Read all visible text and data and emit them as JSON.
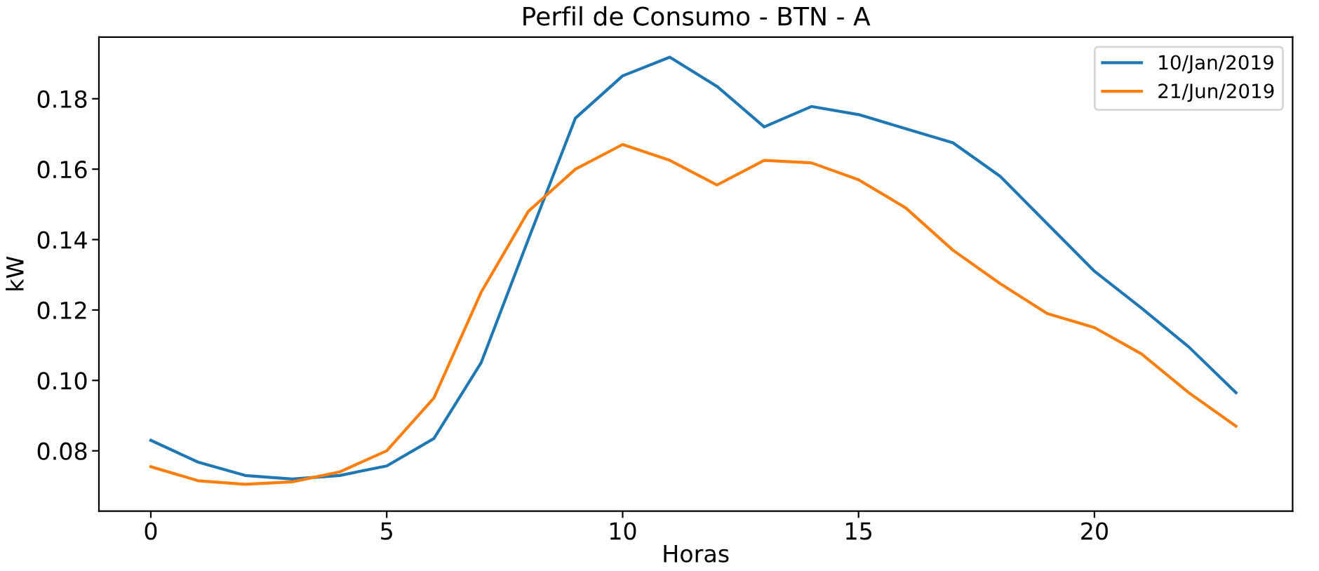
{
  "chart_data": {
    "type": "line",
    "title": "Perfil de Consumo - BTN - A",
    "xlabel": "Horas",
    "ylabel": "kW",
    "x": [
      0,
      1,
      2,
      3,
      4,
      5,
      6,
      7,
      8,
      9,
      10,
      11,
      12,
      13,
      14,
      15,
      16,
      17,
      18,
      19,
      20,
      21,
      22,
      23
    ],
    "series": [
      {
        "name": "10/Jan/2019",
        "color": "#1f77b4",
        "values": [
          0.083,
          0.0768,
          0.073,
          0.072,
          0.073,
          0.0757,
          0.0835,
          0.105,
          0.14,
          0.1745,
          0.1865,
          0.1918,
          0.1835,
          0.172,
          0.1778,
          0.1755,
          0.1715,
          0.1675,
          0.158,
          0.1445,
          0.131,
          0.1205,
          0.1095,
          0.0965
        ]
      },
      {
        "name": "21/Jun/2019",
        "color": "#ff7f0e",
        "values": [
          0.0755,
          0.0715,
          0.0705,
          0.0712,
          0.074,
          0.08,
          0.095,
          0.125,
          0.148,
          0.16,
          0.167,
          0.1625,
          0.1555,
          0.1625,
          0.1618,
          0.157,
          0.149,
          0.137,
          0.1275,
          0.119,
          0.115,
          0.1075,
          0.0965,
          0.087
        ]
      }
    ],
    "xlim": [
      -1.1,
      24.2
    ],
    "ylim": [
      0.0629,
      0.1975
    ],
    "xticks": [
      0,
      5,
      10,
      15,
      20
    ],
    "yticks": [
      {
        "value": 0.08,
        "label": "0.08"
      },
      {
        "value": 0.1,
        "label": "0.10"
      },
      {
        "value": 0.12,
        "label": "0.12"
      },
      {
        "value": 0.14,
        "label": "0.14"
      },
      {
        "value": 0.16,
        "label": "0.16"
      },
      {
        "value": 0.18,
        "label": "0.18"
      }
    ],
    "legend": "top right",
    "grid": false
  }
}
